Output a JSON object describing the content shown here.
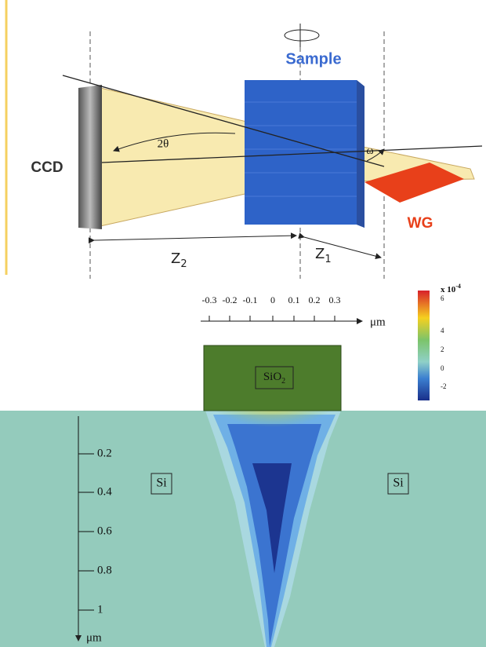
{
  "top": {
    "sample": "Sample",
    "ccd": "CCD",
    "two_theta": "2θ",
    "omega": "ω",
    "wg": "WG",
    "z2": {
      "letter": "Z",
      "sub": "2"
    },
    "z1": {
      "letter": "Z",
      "sub": "1"
    }
  },
  "bottom": {
    "x_axis": {
      "ticks": [
        "-0.3",
        "-0.2",
        "-0.1",
        "0",
        "0.1",
        "0.2",
        "0.3"
      ],
      "unit": "μm"
    },
    "colorbar": {
      "label": {
        "base": "x 10",
        "exp": "-4"
      },
      "ticks": [
        "6",
        "4",
        "2",
        "0",
        "-2"
      ]
    },
    "oxide": {
      "base": "SiO",
      "sub": "2"
    },
    "substrate_left": "Si",
    "substrate_right": "Si",
    "depth_axis": {
      "ticks": [
        "0.2",
        "0.4",
        "0.6",
        "0.8",
        "1"
      ],
      "unit": "μm"
    }
  }
}
